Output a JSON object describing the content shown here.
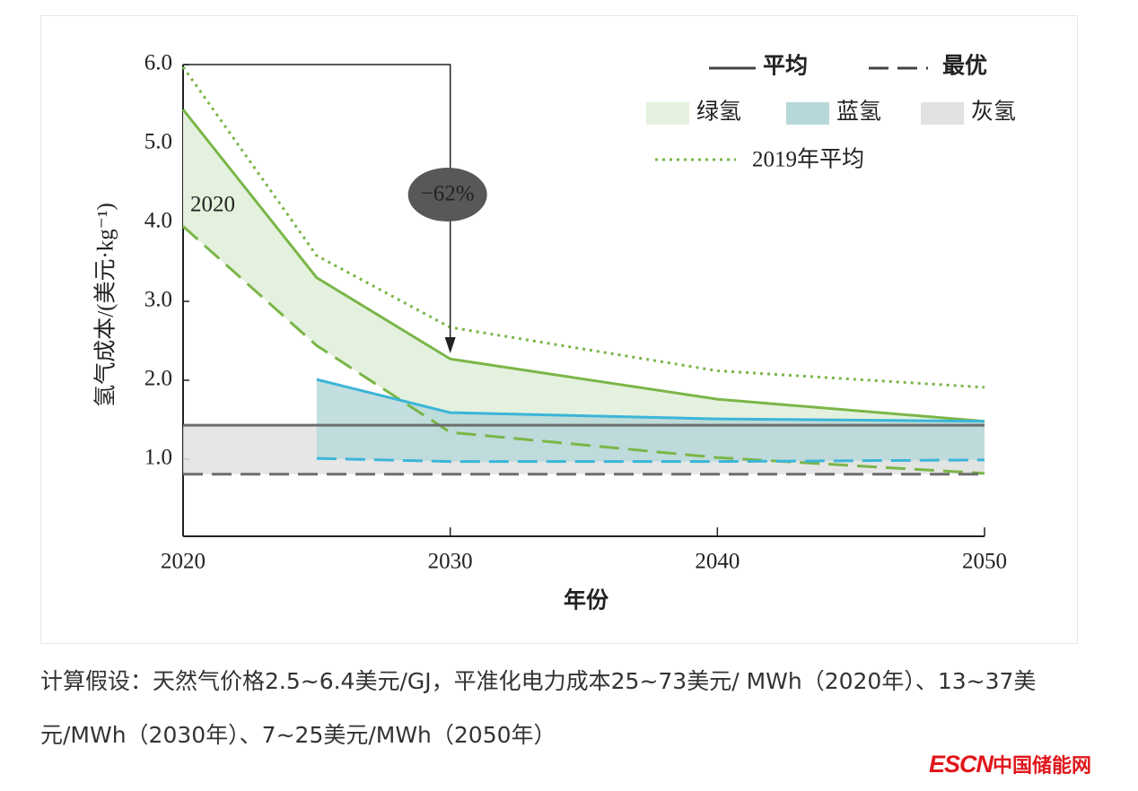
{
  "chart_data": {
    "type": "line",
    "x_label": "年份",
    "y_label": "氢气成本/(美元·kg⁻¹)",
    "x": [
      2020,
      2025,
      2030,
      2040,
      2050
    ],
    "xlim": [
      2020,
      2050
    ],
    "xticks": [
      2020,
      2030,
      2040,
      2050
    ],
    "ylim": [
      0,
      6
    ],
    "yticks": [
      {
        "value": 1,
        "label": "1.0"
      },
      {
        "value": 2,
        "label": "2.0"
      },
      {
        "value": 3,
        "label": "3.0"
      },
      {
        "value": 4,
        "label": "4.0"
      },
      {
        "value": 5,
        "label": "5.0"
      },
      {
        "value": 6,
        "label": "6.0"
      }
    ],
    "line_styles": [
      {
        "name": "平均",
        "dash": "solid"
      },
      {
        "name": "最优",
        "dash": "dashed"
      }
    ],
    "series": [
      {
        "name": "绿氢",
        "color": "#7ab648",
        "fill": "#e4f1de",
        "average": [
          5.43,
          3.3,
          2.27,
          1.76,
          1.48
        ],
        "best": [
          3.95,
          2.44,
          1.34,
          1.02,
          0.82
        ]
      },
      {
        "name": "蓝氢",
        "color": "#3bb5d8",
        "fill": "#b7d8d8",
        "average": [
          null,
          2.01,
          1.59,
          1.51,
          1.48
        ],
        "best": [
          null,
          1.01,
          0.97,
          0.97,
          0.99
        ]
      },
      {
        "name": "灰氢",
        "color": "#6d6d6d",
        "fill": "#e2e2e2",
        "average": [
          1.43,
          1.43,
          1.43,
          1.43,
          1.43
        ],
        "best": [
          0.81,
          0.81,
          0.81,
          0.81,
          0.81
        ]
      },
      {
        "name": "2019年平均",
        "color": "#7ab648",
        "style": "dotted",
        "values": [
          5.97,
          3.58,
          2.67,
          2.12,
          1.91
        ]
      }
    ],
    "annotations": [
      {
        "text": "2020"
      },
      {
        "text": "−62%"
      }
    ]
  },
  "caption": "计算假设：天然气价格2.5~6.4美元/GJ，平准化电力成本25~73美元/ MWh（2020年）、13~37美元/MWh（2030年）、7~25美元/MWh（2050年）",
  "watermark": {
    "brand": "ESCN",
    "site": "中国储能网"
  }
}
